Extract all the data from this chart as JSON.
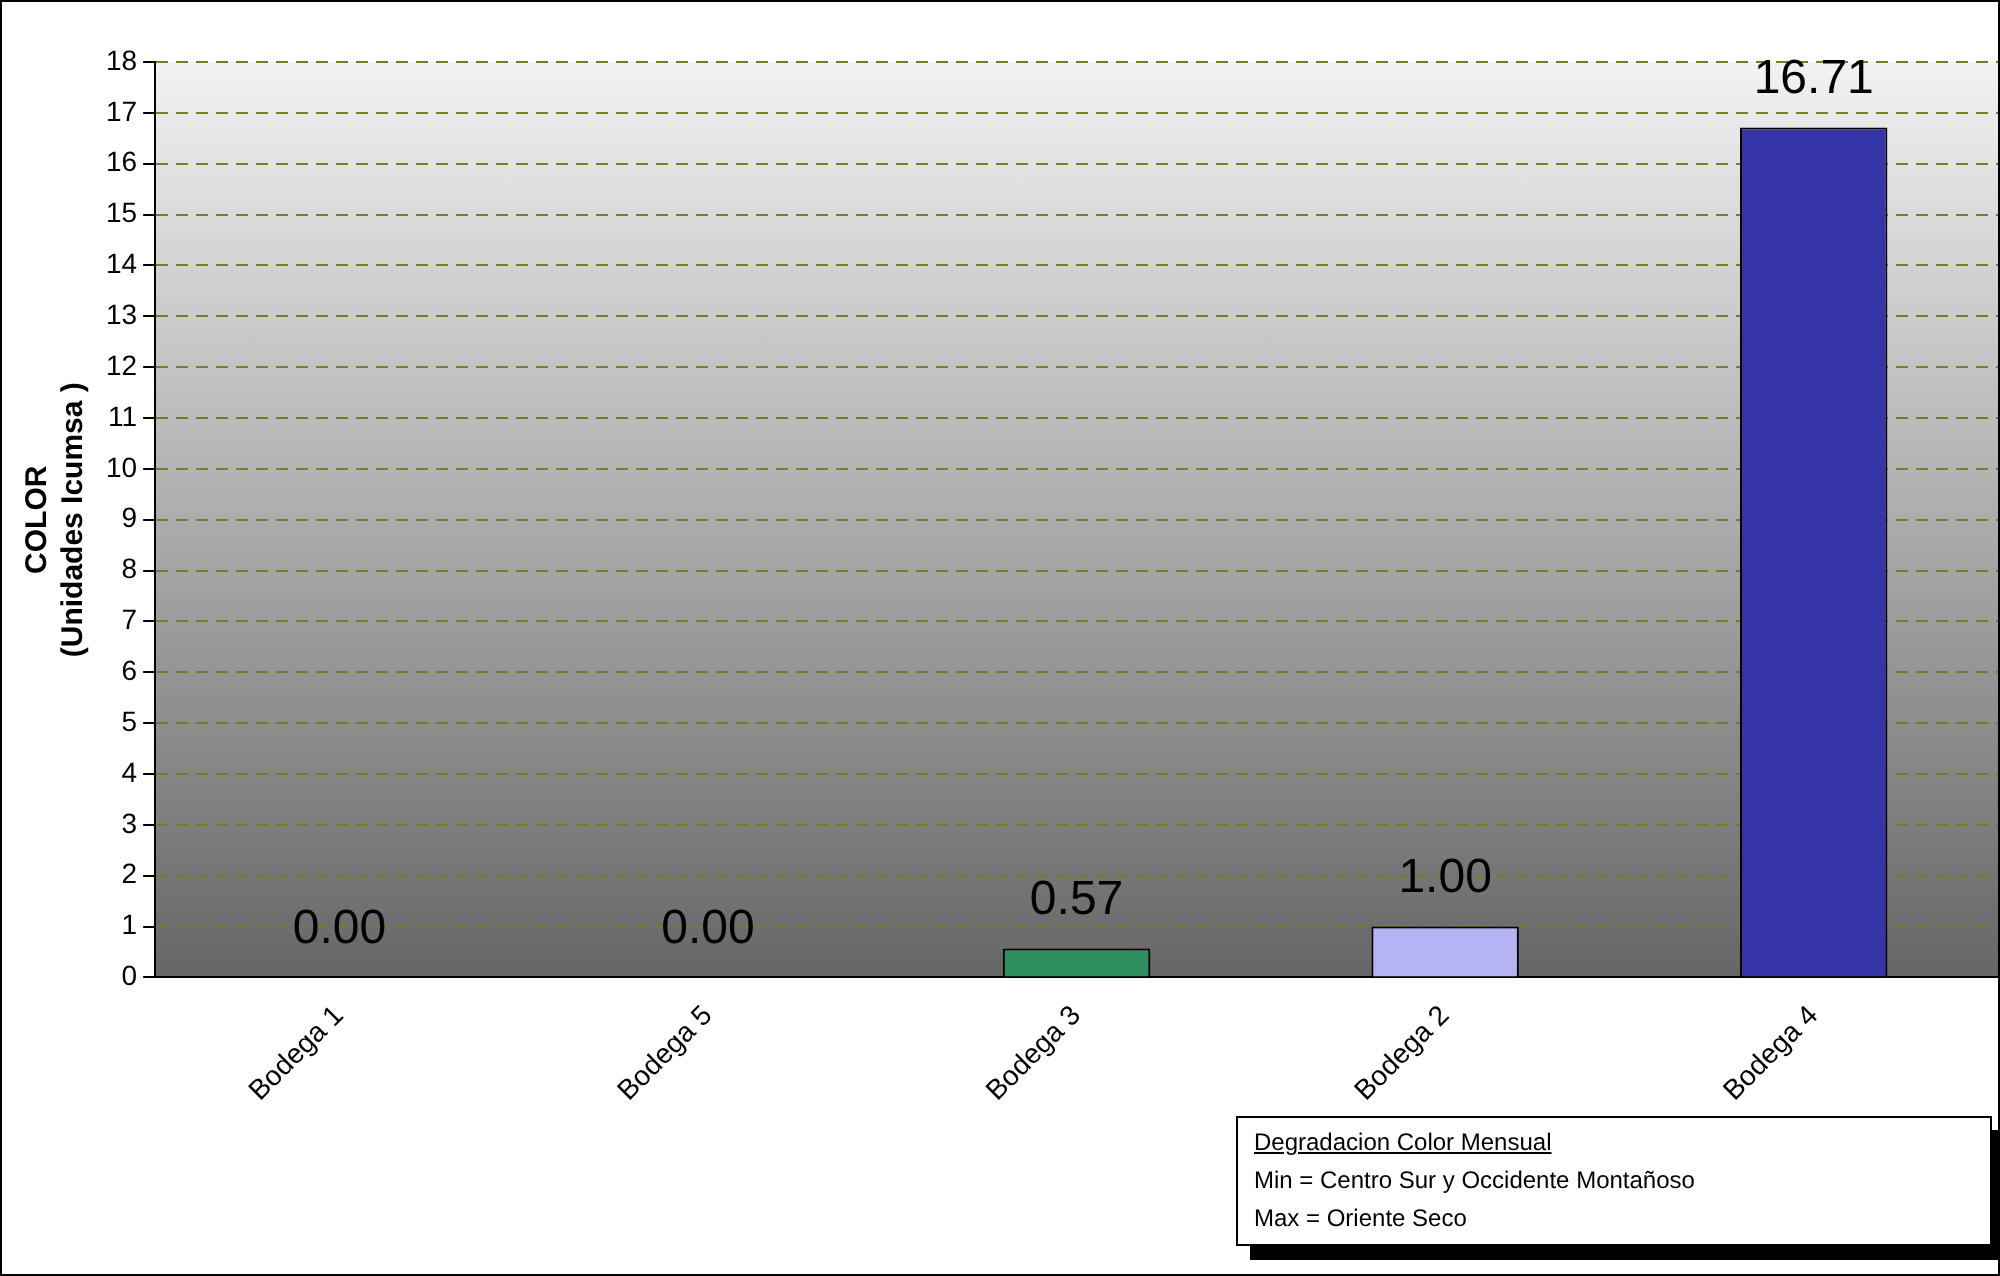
{
  "chart_data": {
    "type": "bar",
    "ylabel": "COLOR\n(Unidades Icumsa )",
    "categories": [
      "Bodega 1",
      "Bodega 5",
      "Bodega 3",
      "Bodega 2",
      "Bodega 4"
    ],
    "values": [
      0,
      0,
      0.57,
      1.0,
      16.71
    ],
    "colors": [
      "#2f8f5f",
      "#2f8f5f",
      "#2f8f5f",
      "#b4b4f4",
      "#3535a8"
    ],
    "value_labels": [
      "0.00",
      "0.00",
      "0.57",
      "1.00",
      "16.71"
    ],
    "ylim": [
      0,
      18
    ],
    "yticks": [
      0,
      1,
      2,
      3,
      4,
      5,
      6,
      7,
      8,
      9,
      10,
      11,
      12,
      13,
      14,
      15,
      16,
      17,
      18
    ],
    "grid": "y",
    "legend": false,
    "annotations": [
      "Degradacion Color Mensual",
      "Min  = Centro Sur y Occidente Montañoso",
      "Max = Oriente Seco"
    ]
  }
}
